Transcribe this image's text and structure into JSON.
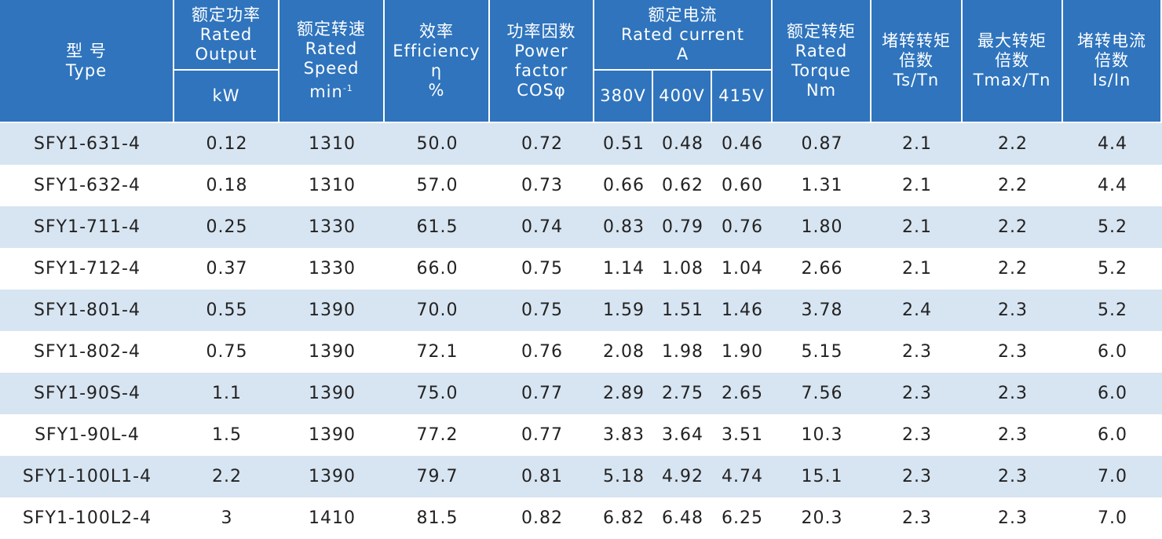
{
  "header": {
    "columns": [
      {
        "lines": [
          "型 号",
          "Type"
        ]
      },
      {
        "lines": [
          "额定功率",
          "Rated",
          "Output"
        ],
        "sub": [
          "kW"
        ]
      },
      {
        "lines": [
          "额定转速",
          "Rated",
          "Speed",
          "min"
        ],
        "sup": "-1"
      },
      {
        "lines": [
          "效率",
          "Efficiency",
          "η",
          "%"
        ]
      },
      {
        "lines": [
          "功率因数",
          "Power",
          "factor",
          "COSφ"
        ]
      },
      {
        "lines": [
          "额定电流",
          "Rated  current",
          "A"
        ],
        "sub": [
          "380V",
          "400V",
          "415V"
        ]
      },
      {
        "lines": [
          "额定转矩",
          "Rated",
          "Torque",
          "Nm"
        ]
      },
      {
        "lines": [
          "堵转转矩",
          "倍数",
          "Ts/Tn"
        ]
      },
      {
        "lines": [
          "最大转矩",
          "倍数",
          "Tmax/Tn"
        ]
      },
      {
        "lines": [
          "堵转电流",
          "倍数",
          "Is/In"
        ]
      }
    ]
  },
  "table": {
    "rows": [
      [
        "SFY1-631-4",
        "0.12",
        "1310",
        "50.0",
        "0.72",
        "0.51",
        "0.48",
        "0.46",
        "0.87",
        "2.1",
        "2.2",
        "4.4"
      ],
      [
        "SFY1-632-4",
        "0.18",
        "1310",
        "57.0",
        "0.73",
        "0.66",
        "0.62",
        "0.60",
        "1.31",
        "2.1",
        "2.2",
        "4.4"
      ],
      [
        "SFY1-711-4",
        "0.25",
        "1330",
        "61.5",
        "0.74",
        "0.83",
        "0.79",
        "0.76",
        "1.80",
        "2.1",
        "2.2",
        "5.2"
      ],
      [
        "SFY1-712-4",
        "0.37",
        "1330",
        "66.0",
        "0.75",
        "1.14",
        "1.08",
        "1.04",
        "2.66",
        "2.1",
        "2.2",
        "5.2"
      ],
      [
        "SFY1-801-4",
        "0.55",
        "1390",
        "70.0",
        "0.75",
        "1.59",
        "1.51",
        "1.46",
        "3.78",
        "2.4",
        "2.3",
        "5.2"
      ],
      [
        "SFY1-802-4",
        "0.75",
        "1390",
        "72.1",
        "0.76",
        "2.08",
        "1.98",
        "1.90",
        "5.15",
        "2.3",
        "2.3",
        "6.0"
      ],
      [
        "SFY1-90S-4",
        "1.1",
        "1390",
        "75.0",
        "0.77",
        "2.89",
        "2.75",
        "2.65",
        "7.56",
        "2.3",
        "2.3",
        "6.0"
      ],
      [
        "SFY1-90L-4",
        "1.5",
        "1390",
        "77.2",
        "0.77",
        "3.83",
        "3.64",
        "3.51",
        "10.3",
        "2.3",
        "2.3",
        "6.0"
      ],
      [
        "SFY1-100L1-4",
        "2.2",
        "1390",
        "79.7",
        "0.81",
        "5.18",
        "4.92",
        "4.74",
        "15.1",
        "2.3",
        "2.3",
        "7.0"
      ],
      [
        "SFY1-100L2-4",
        "3",
        "1410",
        "81.5",
        "0.82",
        "6.82",
        "6.48",
        "6.25",
        "20.3",
        "2.3",
        "2.3",
        "7.0"
      ]
    ]
  }
}
